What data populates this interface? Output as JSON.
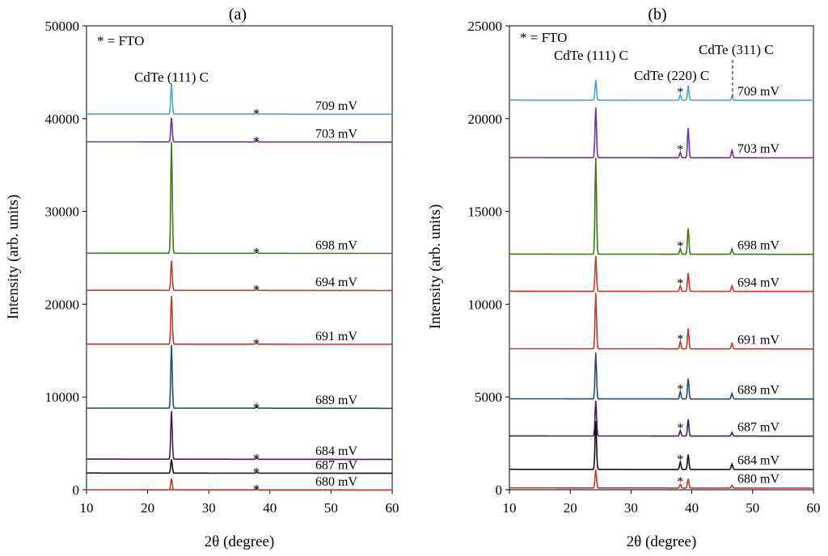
{
  "chart_data": [
    {
      "panel_label": "(a)",
      "type": "line",
      "xlabel": "2θ (degree)",
      "ylabel": "Intensity (arb. units)",
      "xlim": [
        10,
        60
      ],
      "ylim": [
        0,
        50000
      ],
      "xticks": [
        "10",
        "20",
        "30",
        "40",
        "50",
        "60"
      ],
      "yticks": [
        "0",
        "10000",
        "20000",
        "30000",
        "40000",
        "50000"
      ],
      "grid": false,
      "legend_note": "* = FTO",
      "peak_label": "CdTe (111) C",
      "peaks": [
        {
          "position": 23.9,
          "name": "CdTe (111) C"
        },
        {
          "position": 37.8,
          "name": "*"
        }
      ],
      "series": [
        {
          "label": "680 mV",
          "color": "#c0392b",
          "baseline": 0,
          "peak_heights": [
            1200,
            150
          ]
        },
        {
          "label": "687 mV",
          "color": "#111111",
          "baseline": 1800,
          "peak_heights": [
            1500,
            150
          ]
        },
        {
          "label": "684 mV",
          "color": "#3d1f5c",
          "baseline": 3300,
          "peak_heights": [
            5200,
            150
          ]
        },
        {
          "label": "689 mV",
          "color": "#1f4e79",
          "baseline": 8800,
          "peak_heights": [
            6800,
            150
          ]
        },
        {
          "label": "691 mV",
          "color": "#c0392b",
          "baseline": 15700,
          "peak_heights": [
            5200,
            150
          ]
        },
        {
          "label": "694 mV",
          "color": "#c0392b",
          "baseline": 21500,
          "peak_heights": [
            3200,
            150
          ]
        },
        {
          "label": "698 mV",
          "color": "#3b7a12",
          "baseline": 25500,
          "peak_heights": [
            12000,
            150
          ]
        },
        {
          "label": "703 mV",
          "color": "#7030a0",
          "baseline": 37500,
          "peak_heights": [
            2600,
            150
          ]
        },
        {
          "label": "709 mV",
          "color": "#4aa3d9",
          "baseline": 40500,
          "peak_heights": [
            3300,
            150
          ]
        }
      ]
    },
    {
      "panel_label": "(b)",
      "type": "line",
      "xlabel": "2θ (degree)",
      "ylabel": "Intensity (arb. units)",
      "xlim": [
        10,
        60
      ],
      "ylim": [
        0,
        25000
      ],
      "xticks": [
        "10",
        "20",
        "30",
        "40",
        "50",
        "60"
      ],
      "yticks": [
        "0",
        "5000",
        "10000",
        "15000",
        "20000",
        "25000"
      ],
      "grid": false,
      "legend_note": "* = FTO",
      "peak_labels": [
        "CdTe (111) C",
        "CdTe (220) C",
        "CdTe (311) C"
      ],
      "peaks": [
        {
          "position": 24.2,
          "name": "CdTe (111) C"
        },
        {
          "position": 38.1,
          "name": "*"
        },
        {
          "position": 39.4,
          "name": "CdTe (220) C"
        },
        {
          "position": 46.6,
          "name": "CdTe (311) C"
        }
      ],
      "series": [
        {
          "label": "680 mV",
          "color": "#c0392b",
          "baseline": 100,
          "peak_heights": [
            1000,
            200,
            500,
            150
          ]
        },
        {
          "label": "684 mV",
          "color": "#111111",
          "baseline": 1100,
          "peak_heights": [
            2600,
            400,
            800,
            300
          ]
        },
        {
          "label": "687 mV",
          "color": "#3d1f5c",
          "baseline": 2900,
          "peak_heights": [
            1900,
            300,
            900,
            200
          ]
        },
        {
          "label": "689 mV",
          "color": "#1f4e79",
          "baseline": 4900,
          "peak_heights": [
            2500,
            400,
            1100,
            300
          ]
        },
        {
          "label": "691 mV",
          "color": "#c0392b",
          "baseline": 7600,
          "peak_heights": [
            3000,
            400,
            1100,
            300
          ]
        },
        {
          "label": "694 mV",
          "color": "#c0392b",
          "baseline": 10700,
          "peak_heights": [
            1900,
            300,
            1000,
            300
          ]
        },
        {
          "label": "698 mV",
          "color": "#3b7a12",
          "baseline": 12700,
          "peak_heights": [
            5200,
            300,
            1400,
            300
          ]
        },
        {
          "label": "703 mV",
          "color": "#7030a0",
          "baseline": 17900,
          "peak_heights": [
            2700,
            300,
            1600,
            400
          ]
        },
        {
          "label": "709 mV",
          "color": "#4aa3d9",
          "baseline": 21000,
          "peak_heights": [
            1100,
            300,
            800,
            200
          ]
        }
      ]
    }
  ]
}
